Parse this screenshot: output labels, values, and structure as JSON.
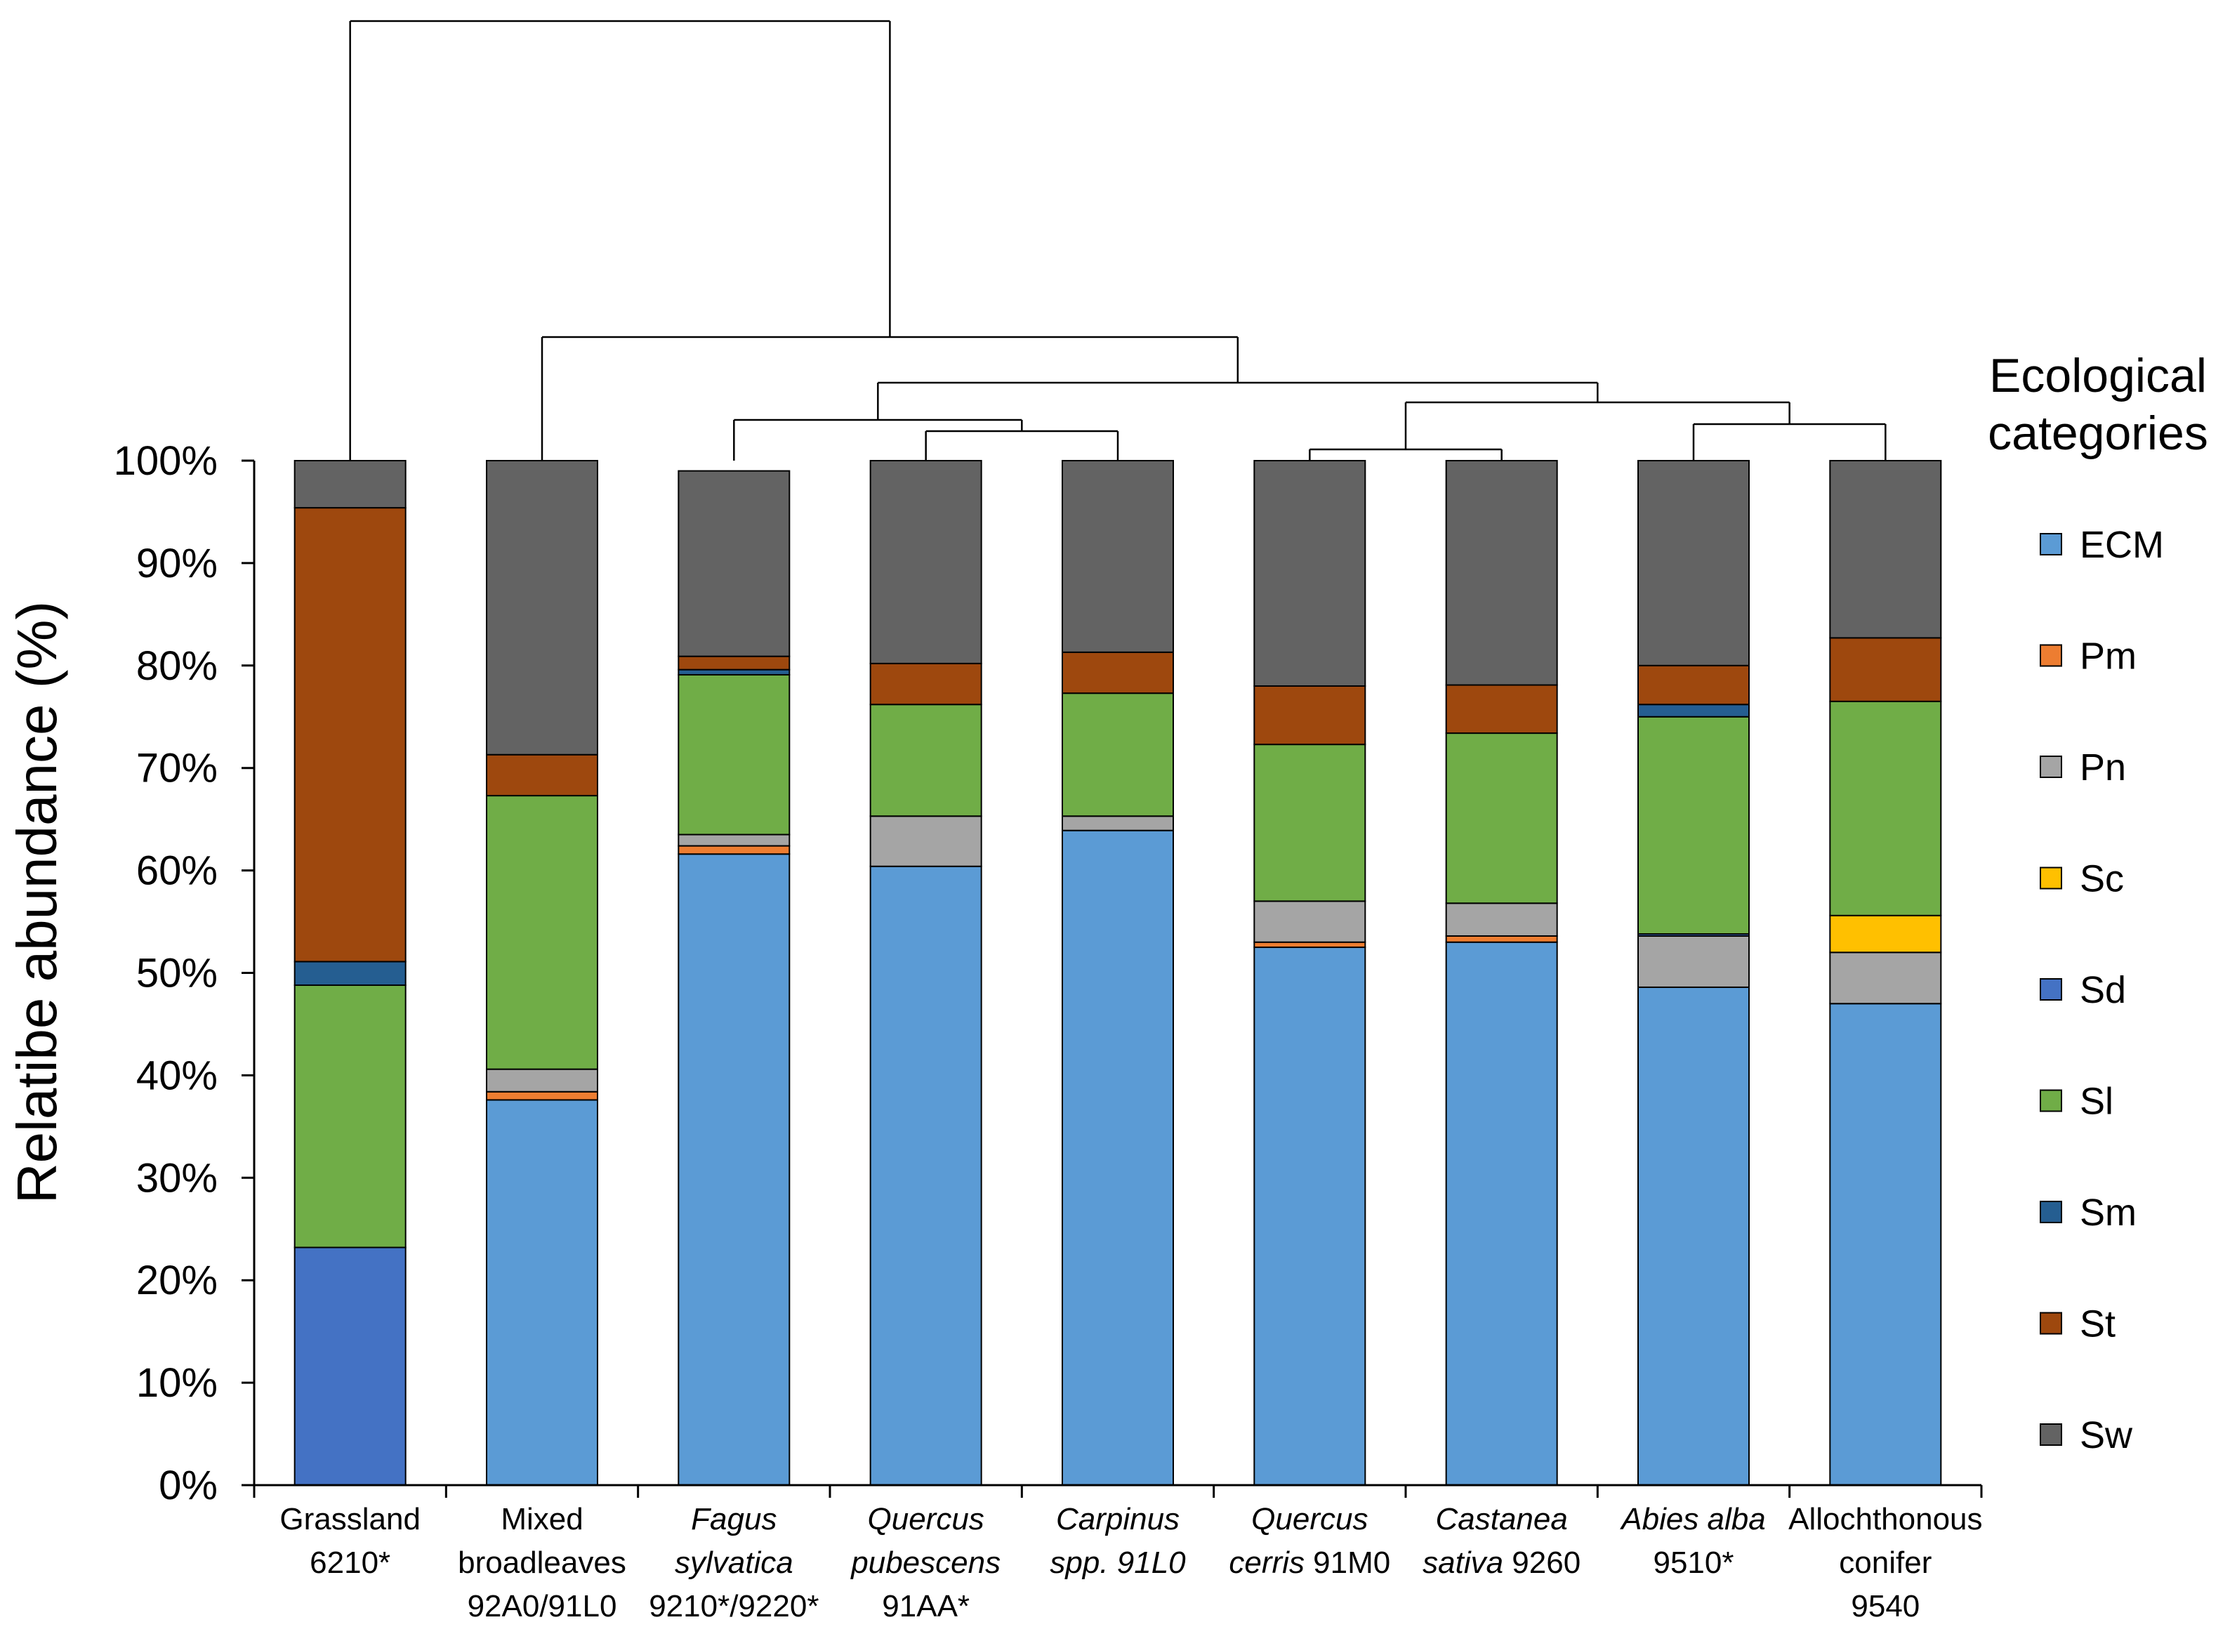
{
  "chart_data": {
    "type": "bar",
    "stacked": true,
    "ylabel": "Relatibe abundance (%)",
    "ylim": [
      0,
      100
    ],
    "y_ticks": [
      "0%",
      "10%",
      "20%",
      "30%",
      "40%",
      "50%",
      "60%",
      "70%",
      "80%",
      "90%",
      "100%"
    ],
    "grid": false,
    "categories": [
      {
        "line1": "Grassland",
        "line1_italic": false,
        "line2": "6210*",
        "line2_italic": false,
        "line3": ""
      },
      {
        "line1": "Mixed",
        "line1_italic": false,
        "line2": "broadleaves",
        "line2_italic": false,
        "line3": "92A0/91L0"
      },
      {
        "line1": "Fagus",
        "line1_italic": true,
        "line2": "sylvatica",
        "line2_italic": true,
        "line3": "9210*/9220*"
      },
      {
        "line1": "Quercus",
        "line1_italic": true,
        "line2": "pubescens",
        "line2_italic": true,
        "line3": "91AA*"
      },
      {
        "line1": "Carpinus",
        "line1_italic": true,
        "line2": "spp. 91L0",
        "line2_italic": true,
        "line3": ""
      },
      {
        "line1": "Quercus",
        "line1_italic": true,
        "line2": "cerris",
        "line2_italic": true,
        "line2_rest": " 91M0",
        "line3": ""
      },
      {
        "line1": "Castanea",
        "line1_italic": true,
        "line2": "sativa",
        "line2_italic": true,
        "line2_rest": " 9260",
        "line3": ""
      },
      {
        "line1": "Abies alba",
        "line1_italic": true,
        "line2": "9510*",
        "line2_italic": false,
        "line3": ""
      },
      {
        "line1": "Allochthonous",
        "line1_italic": false,
        "line2": "conifer",
        "line2_italic": false,
        "line3": "9540"
      }
    ],
    "series": [
      {
        "name": "ECM",
        "color": "#5B9BD5",
        "values": [
          0,
          37.6,
          61.6,
          60.4,
          63.9,
          52.5,
          53.0,
          48.6,
          47.0
        ]
      },
      {
        "name": "Pm",
        "color": "#ED7D31",
        "values": [
          0,
          0.8,
          0.8,
          0,
          0,
          0.5,
          0.6,
          0,
          0
        ]
      },
      {
        "name": "Pn",
        "color": "#A5A5A5",
        "values": [
          0,
          2.2,
          1.1,
          4.9,
          1.4,
          4.0,
          3.2,
          5.0,
          5.0
        ]
      },
      {
        "name": "Sc",
        "color": "#FFC000",
        "values": [
          0,
          0,
          0,
          0,
          0,
          0,
          0,
          0,
          3.6
        ]
      },
      {
        "name": "Sd",
        "color": "#4472C4",
        "values": [
          23.2,
          0,
          0,
          0,
          0,
          0,
          0,
          0.2,
          0
        ]
      },
      {
        "name": "Sl",
        "color": "#70AD47",
        "values": [
          25.6,
          26.7,
          15.6,
          10.9,
          12.0,
          15.3,
          16.6,
          21.2,
          20.9
        ]
      },
      {
        "name": "Sm",
        "color": "#255E91",
        "values": [
          2.3,
          0,
          0.5,
          0,
          0,
          0,
          0,
          1.2,
          0
        ]
      },
      {
        "name": "St",
        "color": "#9E480E",
        "values": [
          44.3,
          4.0,
          1.3,
          4.0,
          4.0,
          5.7,
          4.7,
          3.8,
          6.2
        ]
      },
      {
        "name": "Sw",
        "color": "#636363",
        "values": [
          4.6,
          28.7,
          18.1,
          19.8,
          18.7,
          22.0,
          21.9,
          20.0,
          17.3
        ]
      }
    ],
    "legend": {
      "title_line1": "Ecological",
      "title_line2": "categories",
      "placement": "right"
    },
    "dendrogram": {
      "description_of_merges": "hierarchical clustering of habitat categories shown above bars",
      "merges": [
        {
          "left": 5,
          "right": 6,
          "height": 1
        },
        {
          "left": 3,
          "right": 4,
          "height": 2
        },
        {
          "left": 7,
          "right": 8,
          "height": 3
        },
        {
          "left": 2,
          "right": "m2",
          "height": 4
        },
        {
          "left": "m1",
          "right": "m3",
          "height": 5
        },
        {
          "left": "m4",
          "right": "m5",
          "height": 6
        },
        {
          "left": 1,
          "right": "m6",
          "height": 7
        },
        {
          "left": 0,
          "right": "m7",
          "height": 8
        }
      ]
    }
  }
}
